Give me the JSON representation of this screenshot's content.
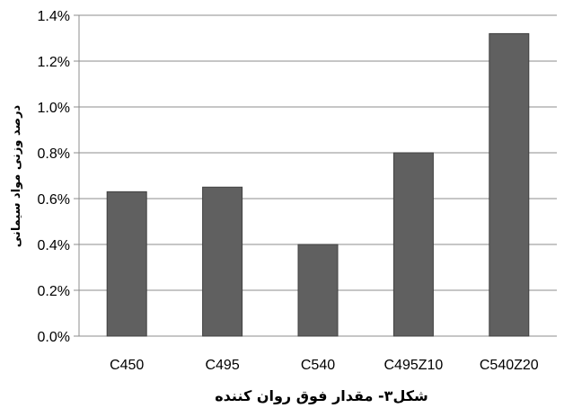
{
  "chart_data": {
    "type": "bar",
    "title": "",
    "xlabel": "شکل۳- مقدار فوق روان کننده",
    "ylabel": "درصد وزنی مواد سیمانی",
    "categories": [
      "C450",
      "C495",
      "C540",
      "C495Z10",
      "C540Z20"
    ],
    "values": [
      0.63,
      0.65,
      0.4,
      0.8,
      1.32
    ],
    "ylim": [
      0,
      1.4
    ],
    "yticks": [
      "0.0%",
      "0.2%",
      "0.4%",
      "0.6%",
      "0.8%",
      "1.0%",
      "1.2%",
      "1.4%"
    ],
    "grid": true,
    "legend": "none",
    "bar_color": "#606060",
    "bar_edge_color": "#404040",
    "grid_color": "#8c8c8c"
  }
}
